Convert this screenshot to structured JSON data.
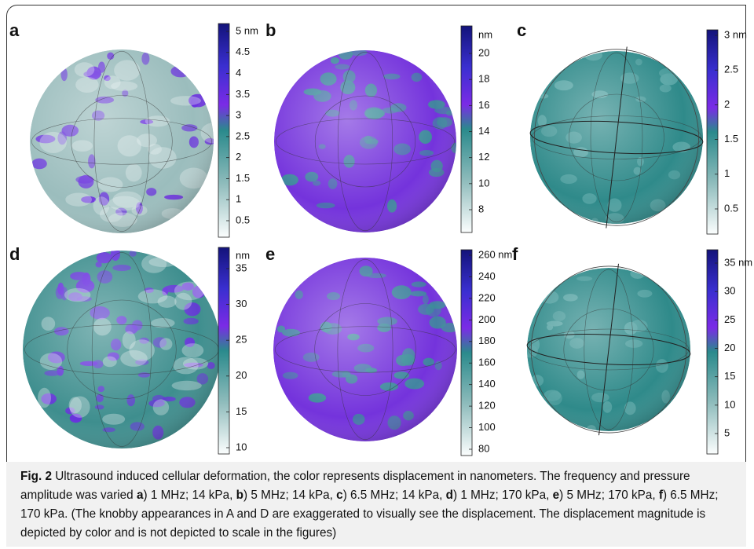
{
  "panels": [
    {
      "label": "a",
      "ticks": [
        "5 nm",
        "4.5",
        "4",
        "3.5",
        "3",
        "2.5",
        "2",
        "1.5",
        "1",
        "0.5"
      ]
    },
    {
      "label": "b",
      "unit": "nm",
      "ticks": [
        "20",
        "18",
        "16",
        "14",
        "12",
        "10",
        "8"
      ]
    },
    {
      "label": "c",
      "ticks": [
        "3 nm",
        "2.5",
        "2",
        "1.5",
        "1",
        "0.5"
      ]
    },
    {
      "label": "d",
      "unit": "nm",
      "ticks": [
        "35",
        "30",
        "25",
        "20",
        "15",
        "10"
      ]
    },
    {
      "label": "e",
      "ticks": [
        "260 nm",
        "240",
        "220",
        "200",
        "180",
        "160",
        "140",
        "120",
        "100",
        "80"
      ]
    },
    {
      "label": "f",
      "ticks": [
        "35 nm",
        "30",
        "25",
        "20",
        "15",
        "10",
        "5"
      ]
    }
  ],
  "caption": {
    "runs": [
      {
        "text": "Fig. 2",
        "bold": true
      },
      {
        "text": " Ultrasound induced cellular deformation, the color represents displacement in nanometers. The frequency and pressure amplitude was varied "
      },
      {
        "text": "a",
        "bold": true
      },
      {
        "text": ") 1 MHz; 14 kPa, "
      },
      {
        "text": "b",
        "bold": true
      },
      {
        "text": ") 5 MHz; 14 kPa, "
      },
      {
        "text": "c",
        "bold": true
      },
      {
        "text": ") 6.5 MHz; 14 kPa, "
      },
      {
        "text": "d",
        "bold": true
      },
      {
        "text": ") 1 MHz; 170 kPa, "
      },
      {
        "text": "e",
        "bold": true
      },
      {
        "text": ") 5 MHz; 170 kPa, "
      },
      {
        "text": "f",
        "bold": true
      },
      {
        "text": ") 6.5 MHz; 170 kPa. (The knobby appearances in A and D are exaggerated to visually see the displacement. The displacement magnitude is depicted by color and is not depicted to scale in the figures)"
      }
    ]
  }
}
